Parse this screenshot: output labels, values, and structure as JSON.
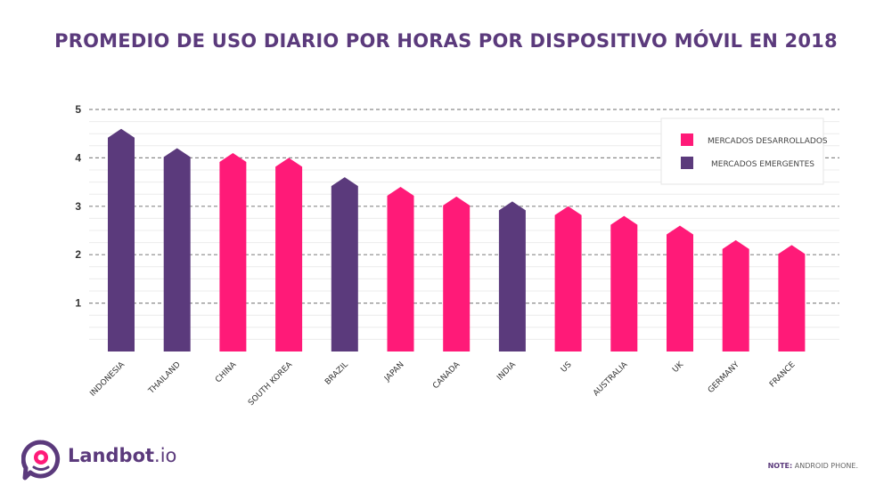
{
  "chart_data": {
    "type": "bar",
    "title": "PROMEDIO DE USO DIARIO POR HORAS POR DISPOSITIVO MÓVIL EN 2018",
    "categories": [
      "INDONESIA",
      "THAILAND",
      "CHINA",
      "SOUTH KOREA",
      "BRAZIL",
      "JAPAN",
      "CANADA",
      "INDIA",
      "US",
      "AUSTRALIA",
      "UK",
      "GERMANY",
      "FRANCE"
    ],
    "values": [
      4.6,
      4.2,
      4.1,
      4.0,
      3.6,
      3.4,
      3.2,
      3.1,
      3.0,
      2.8,
      2.6,
      2.3,
      2.2
    ],
    "market": [
      "emerging",
      "emerging",
      "developed",
      "developed",
      "emerging",
      "developed",
      "developed",
      "emerging",
      "developed",
      "developed",
      "developed",
      "developed",
      "developed"
    ],
    "series": [
      {
        "name": "MERCADOS DESARROLLADOS",
        "key": "developed",
        "color": "#ff1a78"
      },
      {
        "name": "MERCADOS EMERGENTES",
        "key": "emerging",
        "color": "#5b3a7c"
      }
    ],
    "yticks": [
      1,
      2,
      3,
      4,
      5
    ],
    "ylim": [
      0,
      5
    ],
    "xlabel": "",
    "ylabel": "",
    "grid": true,
    "legend_position": "top-right"
  },
  "brand": {
    "name": "Landbot",
    "suffix": ".io",
    "primary_color": "#5b3a7c",
    "accent_color": "#ff1a78",
    "icon": "chat-bubble-eye-logo-icon"
  },
  "note": {
    "label": "NOTE:",
    "text": " ANDROID PHONE."
  }
}
